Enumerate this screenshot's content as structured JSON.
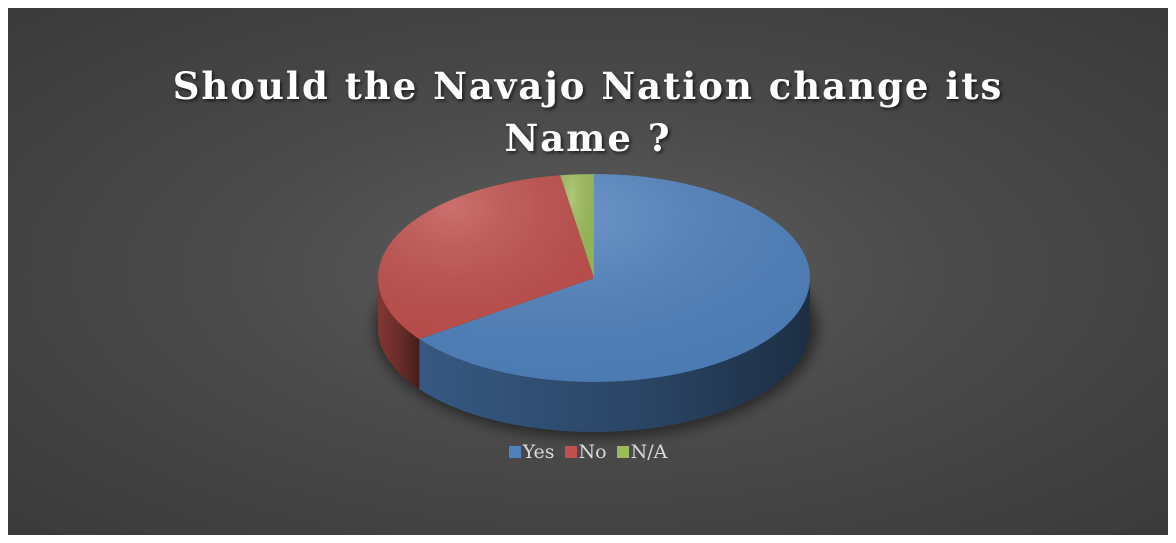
{
  "chart_data": {
    "type": "pie",
    "title": "Should the Navajo Nation change its Name ?",
    "title_lines": [
      "Should the Navajo Nation change its",
      "Name ?"
    ],
    "categories": [
      "Yes",
      "No",
      "N/A"
    ],
    "values": [
      65,
      32.5,
      2.5
    ],
    "colors": [
      "#4f81bd",
      "#c0504d",
      "#9bbb59"
    ],
    "legend_position": "bottom",
    "style": "3d"
  }
}
